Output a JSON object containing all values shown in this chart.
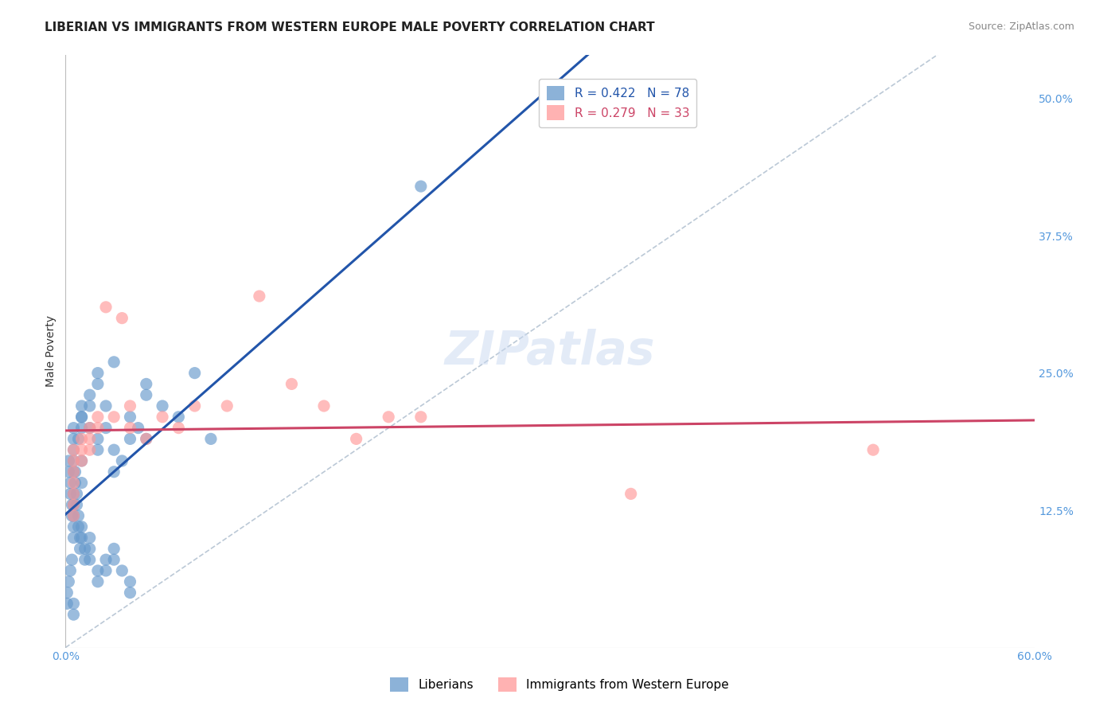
{
  "title": "LIBERIAN VS IMMIGRANTS FROM WESTERN EUROPE MALE POVERTY CORRELATION CHART",
  "source": "Source: ZipAtlas.com",
  "xlabel": "",
  "ylabel": "Male Poverty",
  "xlim": [
    0.0,
    0.6
  ],
  "ylim": [
    0.0,
    0.54
  ],
  "xticks": [
    0.0,
    0.1,
    0.2,
    0.3,
    0.4,
    0.5,
    0.6
  ],
  "xticklabels": [
    "0.0%",
    "",
    "",
    "",
    "",
    "",
    "60.0%"
  ],
  "yticks": [
    0.0,
    0.125,
    0.25,
    0.375,
    0.5
  ],
  "yticklabels": [
    "",
    "12.5%",
    "25.0%",
    "37.5%",
    "50.0%"
  ],
  "background_color": "#ffffff",
  "grid_color": "#dddddd",
  "title_fontsize": 11,
  "axis_label_fontsize": 10,
  "tick_fontsize": 10,
  "legend_label1": "R = 0.422   N = 78",
  "legend_label2": "R = 0.279   N = 33",
  "legend_color1": "#6699cc",
  "legend_color2": "#ff9999",
  "trendline1_color": "#2255aa",
  "trendline2_color": "#cc4466",
  "diagonal_color": "#aabbcc",
  "watermark": "ZIPatlas",
  "blue_dots_x": [
    0.02,
    0.01,
    0.005,
    0.005,
    0.01,
    0.005,
    0.005,
    0.005,
    0.005,
    0.005,
    0.005,
    0.01,
    0.01,
    0.015,
    0.02,
    0.02,
    0.025,
    0.025,
    0.03,
    0.03,
    0.035,
    0.04,
    0.04,
    0.045,
    0.05,
    0.05,
    0.06,
    0.07,
    0.08,
    0.09,
    0.002,
    0.002,
    0.003,
    0.003,
    0.004,
    0.004,
    0.006,
    0.006,
    0.007,
    0.007,
    0.008,
    0.008,
    0.009,
    0.009,
    0.01,
    0.01,
    0.012,
    0.012,
    0.015,
    0.015,
    0.015,
    0.02,
    0.02,
    0.025,
    0.025,
    0.03,
    0.03,
    0.035,
    0.04,
    0.04,
    0.005,
    0.005,
    0.008,
    0.01,
    0.01,
    0.015,
    0.015,
    0.02,
    0.03,
    0.05,
    0.001,
    0.001,
    0.002,
    0.003,
    0.004,
    0.005,
    0.005,
    0.22
  ],
  "blue_dots_y": [
    0.18,
    0.22,
    0.17,
    0.19,
    0.15,
    0.16,
    0.14,
    0.13,
    0.12,
    0.11,
    0.1,
    0.2,
    0.21,
    0.23,
    0.25,
    0.19,
    0.2,
    0.22,
    0.18,
    0.16,
    0.17,
    0.19,
    0.21,
    0.2,
    0.19,
    0.23,
    0.22,
    0.21,
    0.25,
    0.19,
    0.17,
    0.16,
    0.15,
    0.14,
    0.13,
    0.12,
    0.16,
    0.15,
    0.14,
    0.13,
    0.12,
    0.11,
    0.1,
    0.09,
    0.11,
    0.1,
    0.09,
    0.08,
    0.1,
    0.09,
    0.08,
    0.07,
    0.06,
    0.08,
    0.07,
    0.09,
    0.08,
    0.07,
    0.06,
    0.05,
    0.2,
    0.18,
    0.19,
    0.21,
    0.17,
    0.2,
    0.22,
    0.24,
    0.26,
    0.24,
    0.05,
    0.04,
    0.06,
    0.07,
    0.08,
    0.03,
    0.04,
    0.42
  ],
  "pink_dots_x": [
    0.005,
    0.005,
    0.005,
    0.005,
    0.005,
    0.005,
    0.005,
    0.01,
    0.01,
    0.01,
    0.015,
    0.015,
    0.015,
    0.02,
    0.02,
    0.025,
    0.03,
    0.035,
    0.04,
    0.04,
    0.05,
    0.06,
    0.07,
    0.08,
    0.1,
    0.12,
    0.14,
    0.16,
    0.18,
    0.2,
    0.5,
    0.35,
    0.22
  ],
  "pink_dots_y": [
    0.18,
    0.17,
    0.16,
    0.15,
    0.14,
    0.13,
    0.12,
    0.19,
    0.18,
    0.17,
    0.2,
    0.19,
    0.18,
    0.21,
    0.2,
    0.31,
    0.21,
    0.3,
    0.22,
    0.2,
    0.19,
    0.21,
    0.2,
    0.22,
    0.22,
    0.32,
    0.24,
    0.22,
    0.19,
    0.21,
    0.18,
    0.14,
    0.21
  ]
}
